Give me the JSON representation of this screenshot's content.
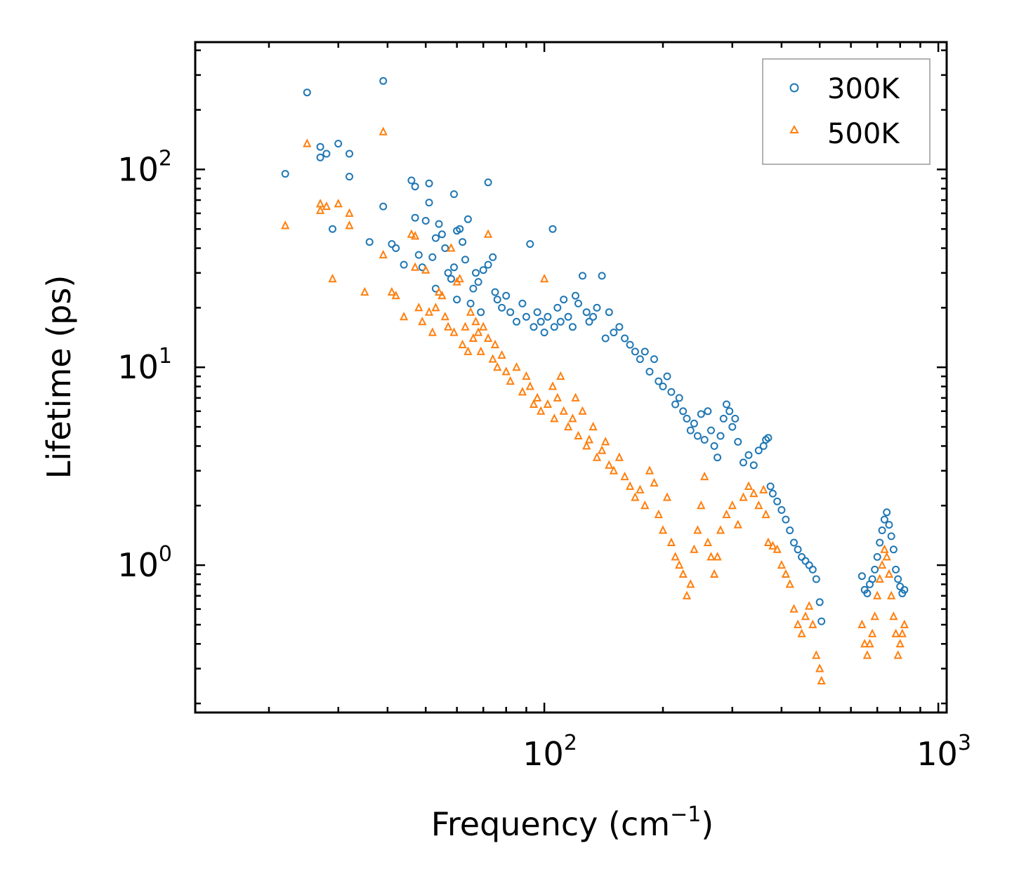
{
  "chart_data": {
    "type": "scatter",
    "xscale": "log",
    "yscale": "log",
    "xlim": [
      13,
      1050
    ],
    "ylim": [
      0.18,
      440
    ],
    "xlabel": "Frequency (cm",
    "xlabel_sup": "−1",
    "xlabel_end": ")",
    "ylabel": "Lifetime (ps)",
    "x_ticks": [
      {
        "base": "10",
        "exp": "2",
        "value": 100
      },
      {
        "base": "10",
        "exp": "3",
        "value": 1000
      }
    ],
    "y_ticks": [
      {
        "base": "10",
        "exp": "0",
        "value": 1
      },
      {
        "base": "10",
        "exp": "1",
        "value": 10
      },
      {
        "base": "10",
        "exp": "2",
        "value": 100
      }
    ],
    "legend": {
      "position": "top-right",
      "entries": [
        "300K",
        "500K"
      ]
    },
    "series": [
      {
        "name": "300K",
        "marker": "circle",
        "color": "#1f77b4",
        "points": [
          [
            22,
            95
          ],
          [
            25,
            245
          ],
          [
            27,
            130
          ],
          [
            27,
            115
          ],
          [
            28,
            120
          ],
          [
            29,
            50
          ],
          [
            30,
            135
          ],
          [
            32,
            120
          ],
          [
            32,
            92
          ],
          [
            36,
            43
          ],
          [
            39,
            280
          ],
          [
            39,
            65
          ],
          [
            41,
            42
          ],
          [
            42,
            40
          ],
          [
            44,
            33
          ],
          [
            46,
            88
          ],
          [
            47,
            82
          ],
          [
            47,
            57
          ],
          [
            48,
            37
          ],
          [
            49,
            32
          ],
          [
            50,
            55
          ],
          [
            51,
            85
          ],
          [
            51,
            68
          ],
          [
            52,
            36
          ],
          [
            53,
            25
          ],
          [
            53,
            45
          ],
          [
            54,
            53
          ],
          [
            55,
            47
          ],
          [
            56,
            40
          ],
          [
            57,
            30
          ],
          [
            58,
            28
          ],
          [
            59,
            75
          ],
          [
            59,
            32
          ],
          [
            60,
            49
          ],
          [
            60,
            22
          ],
          [
            61,
            50
          ],
          [
            62,
            43
          ],
          [
            63,
            35
          ],
          [
            64,
            56
          ],
          [
            65,
            21
          ],
          [
            66,
            25
          ],
          [
            67,
            30
          ],
          [
            68,
            27
          ],
          [
            69,
            19
          ],
          [
            70,
            31
          ],
          [
            72,
            86
          ],
          [
            72,
            33
          ],
          [
            74,
            36
          ],
          [
            75,
            24
          ],
          [
            76,
            22
          ],
          [
            78,
            20
          ],
          [
            80,
            23
          ],
          [
            82,
            19
          ],
          [
            85,
            17
          ],
          [
            88,
            21
          ],
          [
            90,
            18
          ],
          [
            92,
            42
          ],
          [
            94,
            16
          ],
          [
            96,
            19
          ],
          [
            98,
            17
          ],
          [
            100,
            15
          ],
          [
            102,
            18
          ],
          [
            105,
            50
          ],
          [
            106,
            16
          ],
          [
            108,
            20
          ],
          [
            110,
            17
          ],
          [
            112,
            22
          ],
          [
            115,
            18
          ],
          [
            118,
            16
          ],
          [
            120,
            23
          ],
          [
            122,
            21
          ],
          [
            125,
            29
          ],
          [
            128,
            19
          ],
          [
            130,
            17
          ],
          [
            133,
            18
          ],
          [
            136,
            20
          ],
          [
            140,
            29
          ],
          [
            143,
            14
          ],
          [
            146,
            19
          ],
          [
            150,
            15
          ],
          [
            155,
            16
          ],
          [
            160,
            14
          ],
          [
            165,
            13
          ],
          [
            170,
            12
          ],
          [
            175,
            11
          ],
          [
            180,
            12
          ],
          [
            185,
            9.5
          ],
          [
            190,
            11
          ],
          [
            195,
            8.5
          ],
          [
            200,
            8
          ],
          [
            205,
            9
          ],
          [
            210,
            7.5
          ],
          [
            215,
            6.5
          ],
          [
            220,
            7
          ],
          [
            225,
            6
          ],
          [
            230,
            5.5
          ],
          [
            235,
            4.8
          ],
          [
            240,
            5.2
          ],
          [
            245,
            4.5
          ],
          [
            250,
            5.8
          ],
          [
            255,
            4.3
          ],
          [
            260,
            6
          ],
          [
            265,
            4.8
          ],
          [
            270,
            4
          ],
          [
            275,
            3.5
          ],
          [
            280,
            4.5
          ],
          [
            285,
            5.5
          ],
          [
            290,
            6.5
          ],
          [
            295,
            6
          ],
          [
            300,
            5
          ],
          [
            305,
            5.5
          ],
          [
            310,
            4.2
          ],
          [
            320,
            3.3
          ],
          [
            330,
            3.6
          ],
          [
            340,
            3.2
          ],
          [
            350,
            3.8
          ],
          [
            360,
            4
          ],
          [
            365,
            4.3
          ],
          [
            370,
            4.4
          ],
          [
            375,
            2.5
          ],
          [
            380,
            2.3
          ],
          [
            390,
            2.1
          ],
          [
            400,
            1.9
          ],
          [
            410,
            1.7
          ],
          [
            420,
            1.5
          ],
          [
            430,
            1.3
          ],
          [
            440,
            1.2
          ],
          [
            450,
            1.1
          ],
          [
            460,
            1.05
          ],
          [
            470,
            1.0
          ],
          [
            480,
            0.95
          ],
          [
            490,
            0.85
          ],
          [
            500,
            0.65
          ],
          [
            505,
            0.52
          ],
          [
            640,
            0.88
          ],
          [
            650,
            0.75
          ],
          [
            660,
            0.72
          ],
          [
            670,
            0.8
          ],
          [
            680,
            0.85
          ],
          [
            690,
            0.95
          ],
          [
            700,
            1.1
          ],
          [
            710,
            1.3
          ],
          [
            720,
            1.5
          ],
          [
            730,
            1.7
          ],
          [
            740,
            1.85
          ],
          [
            750,
            1.6
          ],
          [
            760,
            1.4
          ],
          [
            770,
            1.2
          ],
          [
            780,
            0.95
          ],
          [
            790,
            0.85
          ],
          [
            800,
            0.78
          ],
          [
            810,
            0.72
          ],
          [
            820,
            0.75
          ]
        ]
      },
      {
        "name": "500K",
        "marker": "triangle",
        "color": "#ff7f0e",
        "points": [
          [
            22,
            52
          ],
          [
            25,
            135
          ],
          [
            27,
            67
          ],
          [
            27,
            62
          ],
          [
            28,
            65
          ],
          [
            29,
            28
          ],
          [
            30,
            67
          ],
          [
            32,
            60
          ],
          [
            32,
            52
          ],
          [
            35,
            24
          ],
          [
            39,
            155
          ],
          [
            39,
            37
          ],
          [
            41,
            24
          ],
          [
            42,
            23
          ],
          [
            44,
            18
          ],
          [
            46,
            47
          ],
          [
            47,
            46
          ],
          [
            47,
            32
          ],
          [
            48,
            20
          ],
          [
            49,
            17
          ],
          [
            50,
            31
          ],
          [
            51,
            19
          ],
          [
            52,
            15
          ],
          [
            53,
            20
          ],
          [
            54,
            24
          ],
          [
            55,
            23
          ],
          [
            56,
            18
          ],
          [
            57,
            16
          ],
          [
            58,
            40
          ],
          [
            59,
            15
          ],
          [
            60,
            27
          ],
          [
            61,
            28
          ],
          [
            62,
            13
          ],
          [
            63,
            16
          ],
          [
            64,
            12
          ],
          [
            65,
            19
          ],
          [
            66,
            14
          ],
          [
            67,
            17
          ],
          [
            68,
            15
          ],
          [
            69,
            12
          ],
          [
            70,
            16
          ],
          [
            72,
            47
          ],
          [
            72,
            14
          ],
          [
            74,
            11
          ],
          [
            75,
            13
          ],
          [
            76,
            10
          ],
          [
            78,
            11.5
          ],
          [
            80,
            9.5
          ],
          [
            82,
            8.5
          ],
          [
            85,
            10
          ],
          [
            88,
            7.5
          ],
          [
            90,
            9
          ],
          [
            92,
            8
          ],
          [
            94,
            6.5
          ],
          [
            96,
            7
          ],
          [
            98,
            6
          ],
          [
            100,
            28
          ],
          [
            102,
            6.5
          ],
          [
            105,
            8
          ],
          [
            106,
            5.5
          ],
          [
            108,
            7
          ],
          [
            110,
            9
          ],
          [
            112,
            6
          ],
          [
            115,
            5
          ],
          [
            118,
            5.5
          ],
          [
            120,
            7
          ],
          [
            122,
            4.5
          ],
          [
            125,
            6
          ],
          [
            128,
            4
          ],
          [
            130,
            4.3
          ],
          [
            133,
            5
          ],
          [
            136,
            3.5
          ],
          [
            140,
            3.8
          ],
          [
            143,
            4.2
          ],
          [
            146,
            3.2
          ],
          [
            150,
            3
          ],
          [
            155,
            3.5
          ],
          [
            160,
            2.8
          ],
          [
            165,
            2.5
          ],
          [
            170,
            2.2
          ],
          [
            175,
            2.4
          ],
          [
            180,
            2
          ],
          [
            185,
            3
          ],
          [
            190,
            2.6
          ],
          [
            195,
            1.8
          ],
          [
            200,
            1.5
          ],
          [
            205,
            2.2
          ],
          [
            210,
            1.3
          ],
          [
            215,
            1.1
          ],
          [
            220,
            1.0
          ],
          [
            225,
            0.9
          ],
          [
            230,
            0.7
          ],
          [
            235,
            0.8
          ],
          [
            240,
            1.2
          ],
          [
            245,
            1.5
          ],
          [
            250,
            2
          ],
          [
            255,
            2.8
          ],
          [
            260,
            1.3
          ],
          [
            265,
            1.1
          ],
          [
            270,
            0.9
          ],
          [
            275,
            1.1
          ],
          [
            280,
            1.5
          ],
          [
            290,
            1.8
          ],
          [
            300,
            2
          ],
          [
            310,
            1.6
          ],
          [
            320,
            2.2
          ],
          [
            330,
            2.5
          ],
          [
            340,
            2.3
          ],
          [
            350,
            2
          ],
          [
            360,
            2.4
          ],
          [
            365,
            1.8
          ],
          [
            370,
            1.3
          ],
          [
            380,
            1.25
          ],
          [
            390,
            1.2
          ],
          [
            400,
            1.0
          ],
          [
            410,
            0.9
          ],
          [
            420,
            0.8
          ],
          [
            430,
            0.6
          ],
          [
            440,
            0.5
          ],
          [
            450,
            0.45
          ],
          [
            460,
            0.55
          ],
          [
            470,
            0.62
          ],
          [
            480,
            0.5
          ],
          [
            490,
            0.35
          ],
          [
            500,
            0.3
          ],
          [
            505,
            0.26
          ],
          [
            640,
            0.5
          ],
          [
            650,
            0.4
          ],
          [
            660,
            0.35
          ],
          [
            670,
            0.4
          ],
          [
            680,
            0.45
          ],
          [
            690,
            0.55
          ],
          [
            700,
            0.7
          ],
          [
            710,
            0.85
          ],
          [
            720,
            1.0
          ],
          [
            730,
            1.2
          ],
          [
            740,
            1.1
          ],
          [
            750,
            0.9
          ],
          [
            760,
            0.7
          ],
          [
            770,
            0.55
          ],
          [
            780,
            0.45
          ],
          [
            790,
            0.35
          ],
          [
            800,
            0.4
          ],
          [
            810,
            0.45
          ],
          [
            820,
            0.5
          ]
        ]
      }
    ]
  }
}
